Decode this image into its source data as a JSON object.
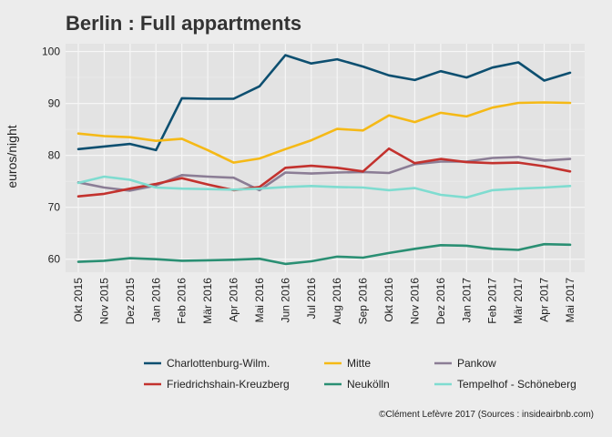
{
  "chart_data": {
    "type": "line",
    "title": "Berlin : Full appartments",
    "xlabel": "",
    "ylabel": "euros/night",
    "ylim": [
      57.5,
      101.5
    ],
    "yticks": [
      60,
      70,
      80,
      90,
      100
    ],
    "grid": true,
    "legend_position": "bottom",
    "caption": "©Clément Lefèvre 2017 (Sources : insideairbnb.com)",
    "categories": [
      "Okt 2015",
      "Nov 2015",
      "Dez 2015",
      "Jan 2016",
      "Feb 2016",
      "Mär 2016",
      "Apr 2016",
      "Mai 2016",
      "Jun 2016",
      "Jul 2016",
      "Aug 2016",
      "Sep 2016",
      "Okt 2016",
      "Nov 2016",
      "Dez 2016",
      "Jan 2017",
      "Feb 2017",
      "Mär 2017",
      "Apr 2017",
      "Mai 2017"
    ],
    "series": [
      {
        "name": "Charlottenburg-Wilm.",
        "color": "#0d4f70",
        "values": [
          81.2,
          81.7,
          82.2,
          81.0,
          91.0,
          90.9,
          90.9,
          93.3,
          99.3,
          97.7,
          98.5,
          97.1,
          95.4,
          94.5,
          96.2,
          95.0,
          96.9,
          97.9,
          94.4,
          95.9
        ]
      },
      {
        "name": "Mitte",
        "color": "#f5b916",
        "values": [
          84.2,
          83.7,
          83.5,
          82.8,
          83.2,
          81.0,
          78.6,
          79.4,
          81.2,
          82.9,
          85.1,
          84.8,
          87.7,
          86.4,
          88.2,
          87.5,
          89.2,
          90.1,
          90.2,
          90.1
        ]
      },
      {
        "name": "Pankow",
        "color": "#8b7d95",
        "values": [
          74.8,
          73.8,
          73.2,
          74.2,
          76.2,
          75.9,
          75.7,
          73.3,
          76.7,
          76.5,
          76.7,
          76.8,
          76.6,
          78.3,
          78.8,
          78.8,
          79.5,
          79.7,
          79.0,
          79.3
        ]
      },
      {
        "name": "Friedrichshain-Kreuzberg",
        "color": "#c3322e",
        "values": [
          72.1,
          72.6,
          73.6,
          74.5,
          75.6,
          74.4,
          73.3,
          73.9,
          77.6,
          78.0,
          77.6,
          76.9,
          81.3,
          78.5,
          79.3,
          78.7,
          78.5,
          78.6,
          77.9,
          76.9
        ]
      },
      {
        "name": "Neukölln",
        "color": "#2a8f73",
        "values": [
          59.5,
          59.7,
          60.2,
          60.0,
          59.7,
          59.8,
          59.9,
          60.1,
          59.1,
          59.6,
          60.5,
          60.3,
          61.2,
          62.0,
          62.7,
          62.6,
          62.0,
          61.8,
          62.9,
          62.8
        ]
      },
      {
        "name": "Tempelhof - Schöneberg",
        "color": "#7fdcd0",
        "values": [
          74.7,
          75.9,
          75.3,
          73.8,
          73.6,
          73.5,
          73.4,
          73.6,
          73.9,
          74.1,
          73.9,
          73.8,
          73.3,
          73.7,
          72.4,
          71.9,
          73.3,
          73.6,
          73.8,
          74.1
        ]
      }
    ]
  }
}
